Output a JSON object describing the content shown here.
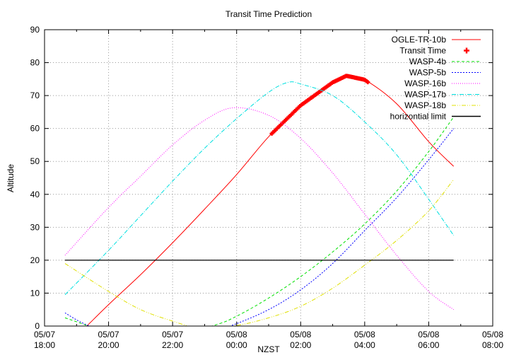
{
  "chart_data": {
    "type": "line",
    "title": "Transit Time Prediction",
    "xlabel": "NZST",
    "ylabel": "Altitude",
    "grid": true,
    "legend_placement": "top-right",
    "xlim_hours_from_0507_1800": [
      0,
      14
    ],
    "ylim": [
      0,
      90
    ],
    "yticks": [
      0,
      10,
      20,
      30,
      40,
      50,
      60,
      70,
      80,
      90
    ],
    "xticks": [
      {
        "h": 0,
        "date": "05/07",
        "time": "18:00"
      },
      {
        "h": 2,
        "date": "05/07",
        "time": "20:00"
      },
      {
        "h": 4,
        "date": "05/07",
        "time": "22:00"
      },
      {
        "h": 6,
        "date": "05/08",
        "time": "00:00"
      },
      {
        "h": 8,
        "date": "05/08",
        "time": "02:00"
      },
      {
        "h": 10,
        "date": "05/08",
        "time": "04:00"
      },
      {
        "h": 12,
        "date": "05/08",
        "time": "06:00"
      },
      {
        "h": 14,
        "date": "05/08",
        "time": "08:00"
      }
    ],
    "series": [
      {
        "name": "OGLE-TR-10b",
        "color": "#ff0000",
        "dash": "",
        "points": [
          [
            1.0,
            -3
          ],
          [
            1.32,
            0
          ],
          [
            2,
            6.5
          ],
          [
            3,
            15.6
          ],
          [
            4,
            25.3
          ],
          [
            5,
            35.5
          ],
          [
            6,
            46
          ],
          [
            7,
            57.5
          ],
          [
            8,
            67
          ],
          [
            9,
            74
          ],
          [
            9.43,
            76
          ],
          [
            10,
            74.8
          ],
          [
            11,
            67.5
          ],
          [
            12,
            56
          ],
          [
            12.78,
            48.5
          ]
        ]
      },
      {
        "name": "Transit Time",
        "color": "#ff0000",
        "marker": "plus",
        "range_hours": [
          7.1,
          10.1
        ]
      },
      {
        "name": "WASP-4b",
        "color": "#00e000",
        "dash": "4,3",
        "points": [
          [
            0.64,
            2.5
          ],
          [
            1.37,
            0
          ],
          [
            3,
            -6
          ],
          [
            5.23,
            0
          ],
          [
            6,
            3
          ],
          [
            7,
            8.5
          ],
          [
            8,
            15
          ],
          [
            9,
            22.5
          ],
          [
            10,
            31
          ],
          [
            11,
            41
          ],
          [
            12,
            53
          ],
          [
            12.78,
            63.5
          ]
        ]
      },
      {
        "name": "WASP-5b",
        "color": "#0000ff",
        "dash": "2,2",
        "points": [
          [
            0.64,
            4
          ],
          [
            1.4,
            0
          ],
          [
            3.5,
            -8
          ],
          [
            5.8,
            0
          ],
          [
            7,
            5
          ],
          [
            8,
            11
          ],
          [
            9,
            19
          ],
          [
            10,
            29
          ],
          [
            11,
            39
          ],
          [
            12,
            50.5
          ],
          [
            12.78,
            60
          ]
        ]
      },
      {
        "name": "WASP-16b",
        "color": "#ff00ff",
        "dash": "1,2",
        "points": [
          [
            0.64,
            21.5
          ],
          [
            2,
            36
          ],
          [
            3,
            45.5
          ],
          [
            4,
            55
          ],
          [
            5,
            62.5
          ],
          [
            5.9,
            66.3
          ],
          [
            7,
            64
          ],
          [
            8,
            57
          ],
          [
            9,
            46.5
          ],
          [
            10,
            34
          ],
          [
            11,
            21.5
          ],
          [
            12,
            10.5
          ],
          [
            12.78,
            5
          ]
        ]
      },
      {
        "name": "WASP-17b",
        "color": "#00e0e0",
        "dash": "6,2,1,2",
        "points": [
          [
            0.64,
            9.5
          ],
          [
            2,
            23
          ],
          [
            3,
            33.5
          ],
          [
            4,
            44
          ],
          [
            5,
            54
          ],
          [
            6,
            63
          ],
          [
            7,
            71
          ],
          [
            7.6,
            74
          ],
          [
            8,
            73.5
          ],
          [
            9,
            70
          ],
          [
            10,
            62
          ],
          [
            11,
            52
          ],
          [
            12,
            38.5
          ],
          [
            12.78,
            27.5
          ]
        ]
      },
      {
        "name": "WASP-18b",
        "color": "#e0e000",
        "dash": "6,2,1,2,1,2",
        "points": [
          [
            0.64,
            19
          ],
          [
            2,
            10.5
          ],
          [
            3,
            5
          ],
          [
            4,
            1.5
          ],
          [
            4.8,
            -0.5
          ],
          [
            5.9,
            0
          ],
          [
            7,
            2.5
          ],
          [
            8,
            6
          ],
          [
            9,
            11.5
          ],
          [
            10,
            18.5
          ],
          [
            11,
            26
          ],
          [
            12,
            35
          ],
          [
            12.78,
            44.5
          ]
        ]
      },
      {
        "name": "horizontial limit",
        "color": "#000000",
        "dash": "",
        "points": [
          [
            0.64,
            20
          ],
          [
            12.78,
            20
          ]
        ]
      }
    ]
  }
}
